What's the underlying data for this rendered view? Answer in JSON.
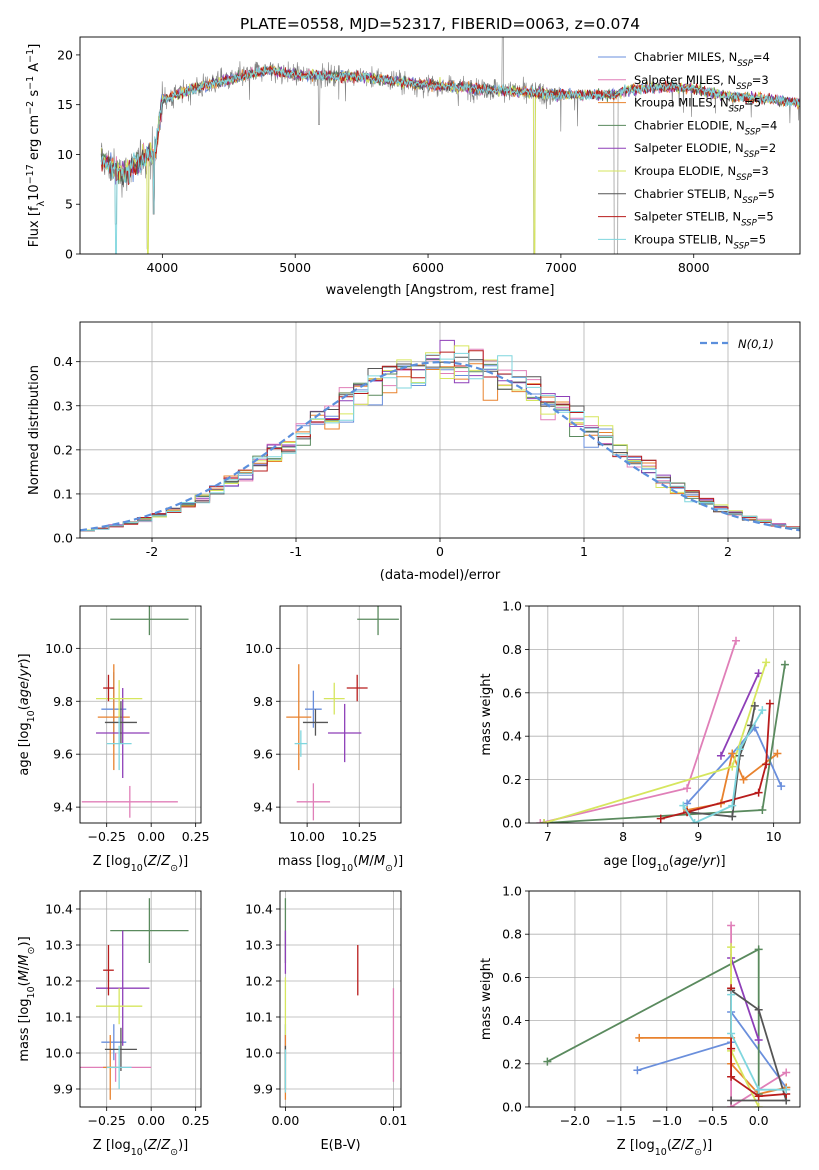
{
  "page_title": "PLATE=0558, MJD=52317, FIBERID=0063, z=0.074",
  "colors": {
    "Chabrier MILES": "#6a8fdc",
    "Salpeter MILES": "#e07fb8",
    "Kroupa MILES": "#e8822e",
    "Chabrier ELODIE": "#5a8a5e",
    "Salpeter ELODIE": "#8e3fb8",
    "Kroupa ELODIE": "#d6e65e",
    "Chabrier STELIB": "#555555",
    "Salpeter STELIB": "#b81c1c",
    "Kroupa STELIB": "#7fd6de",
    "gaussian": "#5b8fdc",
    "data": "#7f7f7f"
  },
  "chart_data": [
    {
      "id": "spectrum",
      "type": "line",
      "title": "PLATE=0558, MJD=52317, FIBERID=0063, z=0.074",
      "xlabel": "wavelength [Angstrom, rest frame]",
      "ylabel": "Flux [f_λ10^-17 erg cm^-2 s^-1 A^-1]",
      "xlim": [
        3380,
        8800
      ],
      "ylim": [
        0,
        21.8
      ],
      "xticks": [
        4000,
        5000,
        6000,
        7000,
        8000
      ],
      "yticks": [
        0,
        5,
        10,
        15,
        20
      ],
      "legend_position": "top-right",
      "legend": [
        {
          "name": "Chabrier MILES",
          "nssp": "4"
        },
        {
          "name": "Salpeter MILES",
          "nssp": "3"
        },
        {
          "name": "Kroupa MILES",
          "nssp": "5"
        },
        {
          "name": "Chabrier ELODIE",
          "nssp": "4"
        },
        {
          "name": "Salpeter ELODIE",
          "nssp": "2"
        },
        {
          "name": "Kroupa ELODIE",
          "nssp": "3"
        },
        {
          "name": "Chabrier STELIB",
          "nssp": "5"
        },
        {
          "name": "Salpeter STELIB",
          "nssp": "5"
        },
        {
          "name": "Kroupa STELIB",
          "nssp": "5"
        }
      ],
      "legend_prefix": "N",
      "legend_sub": "SSP",
      "continuum": {
        "x": [
          3540,
          3700,
          3850,
          3950,
          4000,
          4200,
          4500,
          4800,
          5000,
          5500,
          6000,
          6500,
          7000,
          7400,
          7500,
          7800,
          8000,
          8200,
          8800
        ],
        "y": [
          9.5,
          8.0,
          9.5,
          10.5,
          15.5,
          16.5,
          17.5,
          18.5,
          18.0,
          17.8,
          17.0,
          16.5,
          16.0,
          16.0,
          16.5,
          16.8,
          16.6,
          16.0,
          15.2
        ]
      },
      "features": [
        {
          "x": 3650,
          "y": 3.0
        },
        {
          "x": 3890,
          "y": 0.5
        },
        {
          "x": 3935,
          "y": 4.0
        },
        {
          "x": 5180,
          "y": 13.0
        },
        {
          "x": 6563,
          "y": 21.8
        },
        {
          "x": 6800,
          "y": 0
        },
        {
          "x": 7420,
          "y": 0
        }
      ]
    },
    {
      "id": "residuals",
      "type": "histogram",
      "xlabel": "(data-model)/error",
      "ylabel": "Normed distribution",
      "xlim": [
        -2.5,
        2.5
      ],
      "ylim": [
        0,
        0.49
      ],
      "xticks": [
        -2,
        -1,
        0,
        1,
        2
      ],
      "yticks": [
        0.0,
        0.1,
        0.2,
        0.3,
        0.4
      ],
      "grid": true,
      "legend_position": "top-right",
      "legend": [
        "N(0,1)"
      ],
      "bin_width": 0.1
    },
    {
      "id": "age-vs-Z",
      "type": "errorbar",
      "xlabel": "Z [log10(Z/Z⊙)]",
      "ylabel": "age [log10(age/yr)]",
      "xlim": [
        -0.4,
        0.28
      ],
      "ylim": [
        9.34,
        10.16
      ],
      "xticks": [
        -0.25,
        0.0,
        0.25
      ],
      "xticklabels": [
        "−0.25",
        "0.00",
        "0.25"
      ],
      "yticks": [
        9.4,
        9.6,
        9.8,
        10.0
      ],
      "grid": true,
      "points": [
        {
          "series": "Chabrier MILES",
          "x": -0.21,
          "xerr": 0.07,
          "y": 9.77,
          "yerr": 0.14
        },
        {
          "series": "Salpeter MILES",
          "x": -0.12,
          "xerr": 0.27,
          "y": 9.42,
          "yerr": 0.06
        },
        {
          "series": "Kroupa MILES",
          "x": -0.21,
          "xerr": 0.09,
          "y": 9.74,
          "yerr": 0.2
        },
        {
          "series": "Chabrier ELODIE",
          "x": -0.01,
          "xerr": 0.22,
          "y": 10.11,
          "yerr": 0.06
        },
        {
          "series": "Salpeter ELODIE",
          "x": -0.16,
          "xerr": 0.15,
          "y": 9.68,
          "yerr": 0.17
        },
        {
          "series": "Kroupa ELODIE",
          "x": -0.18,
          "xerr": 0.13,
          "y": 9.81,
          "yerr": 0.07
        },
        {
          "series": "Chabrier STELIB",
          "x": -0.17,
          "xerr": 0.09,
          "y": 9.72,
          "yerr": 0.08
        },
        {
          "series": "Salpeter STELIB",
          "x": -0.24,
          "xerr": 0.03,
          "y": 9.85,
          "yerr": 0.05
        },
        {
          "series": "Kroupa STELIB",
          "x": -0.18,
          "xerr": 0.07,
          "y": 9.64,
          "yerr": 0.1
        }
      ]
    },
    {
      "id": "age-vs-mass",
      "type": "errorbar",
      "xlabel": "mass [log10(M/M⊙)]",
      "xlim": [
        9.87,
        10.45
      ],
      "ylim": [
        9.34,
        10.16
      ],
      "xticks": [
        10.0,
        10.25
      ],
      "xticklabels": [
        "10.00",
        "10.25"
      ],
      "yticks": [
        9.4,
        9.6,
        9.8,
        10.0
      ],
      "grid": true,
      "points": [
        {
          "series": "Chabrier MILES",
          "x": 10.03,
          "xerr": 0.04,
          "y": 9.77,
          "yerr": 0.07
        },
        {
          "series": "Salpeter MILES",
          "x": 10.03,
          "xerr": 0.08,
          "y": 9.42,
          "yerr": 0.07
        },
        {
          "series": "Kroupa MILES",
          "x": 9.96,
          "xerr": 0.06,
          "y": 9.74,
          "yerr": 0.2
        },
        {
          "series": "Chabrier ELODIE",
          "x": 10.34,
          "xerr": 0.1,
          "y": 10.11,
          "yerr": 0.06
        },
        {
          "series": "Salpeter ELODIE",
          "x": 10.18,
          "xerr": 0.08,
          "y": 9.68,
          "yerr": 0.11
        },
        {
          "series": "Kroupa ELODIE",
          "x": 10.13,
          "xerr": 0.05,
          "y": 9.81,
          "yerr": 0.06
        },
        {
          "series": "Chabrier STELIB",
          "x": 10.04,
          "xerr": 0.06,
          "y": 9.72,
          "yerr": 0.05
        },
        {
          "series": "Salpeter STELIB",
          "x": 10.24,
          "xerr": 0.05,
          "y": 9.85,
          "yerr": 0.05
        },
        {
          "series": "Kroupa STELIB",
          "x": 9.97,
          "xerr": 0.03,
          "y": 9.64,
          "yerr": 0.05
        }
      ]
    },
    {
      "id": "weight-vs-age",
      "type": "line",
      "xlabel": "age [log10(age/yr)]",
      "ylabel": "mass weight",
      "xlim": [
        6.75,
        10.35
      ],
      "ylim": [
        0,
        1
      ],
      "xticks": [
        7,
        8,
        9,
        10
      ],
      "yticks": [
        0.0,
        0.2,
        0.4,
        0.6,
        0.8,
        1.0
      ],
      "grid": true,
      "series": [
        {
          "name": "Chabrier MILES",
          "x": [
            8.85,
            9.45,
            9.75,
            10.1
          ],
          "y": [
            0.09,
            0.32,
            0.44,
            0.17
          ]
        },
        {
          "name": "Salpeter MILES",
          "x": [
            6.9,
            8.85,
            9.5
          ],
          "y": [
            0.0,
            0.16,
            0.84
          ]
        },
        {
          "name": "Kroupa MILES",
          "x": [
            8.85,
            9.3,
            9.45,
            9.6,
            10.05
          ],
          "y": [
            0.06,
            0.09,
            0.32,
            0.2,
            0.32
          ]
        },
        {
          "name": "Chabrier ELODIE",
          "x": [
            6.95,
            9.85,
            10.15
          ],
          "y": [
            0.0,
            0.06,
            0.73
          ]
        },
        {
          "name": "Salpeter ELODIE",
          "x": [
            9.3,
            9.8
          ],
          "y": [
            0.31,
            0.69
          ]
        },
        {
          "name": "Kroupa ELODIE",
          "x": [
            6.95,
            9.45,
            9.9
          ],
          "y": [
            0.0,
            0.26,
            0.74
          ]
        },
        {
          "name": "Chabrier STELIB",
          "x": [
            8.85,
            9.45,
            9.55,
            9.7,
            9.75
          ],
          "y": [
            0.05,
            0.03,
            0.31,
            0.45,
            0.54
          ]
        },
        {
          "name": "Salpeter STELIB",
          "x": [
            8.5,
            8.85,
            9.8,
            9.9,
            9.95
          ],
          "y": [
            0.02,
            0.05,
            0.14,
            0.27,
            0.55
          ]
        },
        {
          "name": "Kroupa STELIB",
          "x": [
            8.8,
            8.95,
            9.45,
            9.55,
            9.85
          ],
          "y": [
            0.08,
            0.0,
            0.08,
            0.34,
            0.52
          ]
        }
      ]
    },
    {
      "id": "mass-vs-Z",
      "type": "errorbar",
      "xlabel": "Z [log10(Z/Z⊙)]",
      "ylabel": "mass [log10(M/M⊙)]",
      "xlim": [
        -0.4,
        0.28
      ],
      "ylim": [
        9.85,
        10.45
      ],
      "xticks": [
        -0.25,
        0.0,
        0.25
      ],
      "xticklabels": [
        "−0.25",
        "0.00",
        "0.25"
      ],
      "yticks": [
        9.9,
        10.0,
        10.1,
        10.2,
        10.3,
        10.4
      ],
      "grid": true,
      "points": [
        {
          "series": "Chabrier MILES",
          "x": -0.21,
          "xerr": 0.07,
          "y": 10.03,
          "yerr": 0.05
        },
        {
          "series": "Salpeter MILES",
          "x": -0.2,
          "xerr": 0.2,
          "y": 9.96,
          "yerr": 0.04
        },
        {
          "series": "Kroupa MILES",
          "x": -0.23,
          "xerr": 0.04,
          "y": 9.96,
          "yerr": 0.09
        },
        {
          "series": "Chabrier ELODIE",
          "x": -0.01,
          "xerr": 0.22,
          "y": 10.34,
          "yerr": 0.09
        },
        {
          "series": "Salpeter ELODIE",
          "x": -0.16,
          "xerr": 0.15,
          "y": 10.18,
          "yerr": 0.16
        },
        {
          "series": "Kroupa ELODIE",
          "x": -0.18,
          "xerr": 0.13,
          "y": 10.13,
          "yerr": 0.05
        },
        {
          "series": "Chabrier STELIB",
          "x": -0.17,
          "xerr": 0.09,
          "y": 10.01,
          "yerr": 0.06
        },
        {
          "series": "Salpeter STELIB",
          "x": -0.24,
          "xerr": 0.03,
          "y": 10.23,
          "yerr": 0.07
        },
        {
          "series": "Kroupa STELIB",
          "x": -0.18,
          "xerr": 0.07,
          "y": 9.96,
          "yerr": 0.06
        }
      ]
    },
    {
      "id": "mass-vs-ebv",
      "type": "errorbar",
      "xlabel": "E(B-V)",
      "xlim": [
        -0.0005,
        0.0107
      ],
      "ylim": [
        9.85,
        10.45
      ],
      "xticks": [
        0.0,
        0.01
      ],
      "xticklabels": [
        "0.00",
        "0.01"
      ],
      "yticks": [
        9.9,
        10.0,
        10.1,
        10.2,
        10.3,
        10.4
      ],
      "grid": true,
      "points": [
        {
          "series": "Chabrier MILES",
          "x": 0.0,
          "xerr": 0,
          "y": 10.03,
          "yerr": 0.05
        },
        {
          "series": "Salpeter MILES",
          "x": 0.01,
          "xerr": 0,
          "y": 10.05,
          "yerr": 0.13
        },
        {
          "series": "Kroupa MILES",
          "x": 0.0,
          "xerr": 0,
          "y": 9.96,
          "yerr": 0.09
        },
        {
          "series": "Chabrier ELODIE",
          "x": 0.0,
          "xerr": 0,
          "y": 10.34,
          "yerr": 0.09
        },
        {
          "series": "Salpeter ELODIE",
          "x": 0.0,
          "xerr": 0,
          "y": 10.28,
          "yerr": 0.06
        },
        {
          "series": "Kroupa ELODIE",
          "x": 0.0,
          "xerr": 0,
          "y": 10.13,
          "yerr": 0.08
        },
        {
          "series": "Chabrier STELIB",
          "x": 0.0,
          "xerr": 0,
          "y": 9.96,
          "yerr": 0.06
        },
        {
          "series": "Salpeter STELIB",
          "x": 0.0067,
          "xerr": 0,
          "y": 10.23,
          "yerr": 0.07
        },
        {
          "series": "Kroupa STELIB",
          "x": 0.0,
          "xerr": 0,
          "y": 9.95,
          "yerr": 0.06
        }
      ]
    },
    {
      "id": "weight-vs-Z",
      "type": "line",
      "xlabel": "Z [log10(Z/Z⊙)]",
      "ylabel": "mass weight",
      "xlim": [
        -2.5,
        0.45
      ],
      "ylim": [
        0,
        1
      ],
      "xticks": [
        -2.0,
        -1.5,
        -1.0,
        -0.5,
        0.0
      ],
      "xticklabels": [
        "−2.0",
        "−1.5",
        "−1.0",
        "−0.5",
        "0.0"
      ],
      "yticks": [
        0.0,
        0.2,
        0.4,
        0.6,
        0.8,
        1.0
      ],
      "grid": true,
      "series": [
        {
          "name": "Chabrier MILES",
          "x": [
            -1.32,
            -0.3,
            -0.3,
            0.3
          ],
          "y": [
            0.17,
            0.3,
            0.44,
            0.09
          ]
        },
        {
          "name": "Salpeter MILES",
          "x": [
            -0.3,
            -0.3,
            0.3
          ],
          "y": [
            0.84,
            0.0,
            0.16
          ]
        },
        {
          "name": "Kroupa MILES",
          "x": [
            -1.3,
            -0.3,
            -0.3,
            0.0,
            0.3
          ],
          "y": [
            0.32,
            0.32,
            0.2,
            0.06,
            0.09
          ]
        },
        {
          "name": "Chabrier ELODIE",
          "x": [
            -2.3,
            0.0,
            0.0
          ],
          "y": [
            0.21,
            0.73,
            0.06
          ]
        },
        {
          "name": "Salpeter ELODIE",
          "x": [
            -0.3,
            0.0
          ],
          "y": [
            0.69,
            0.31
          ]
        },
        {
          "name": "Kroupa ELODIE",
          "x": [
            -0.3,
            -0.3,
            0.0
          ],
          "y": [
            0.74,
            0.26,
            0.0
          ]
        },
        {
          "name": "Chabrier STELIB",
          "x": [
            -0.3,
            0.0,
            0.3,
            -0.3
          ],
          "y": [
            0.54,
            0.45,
            0.03,
            0.03
          ]
        },
        {
          "name": "Salpeter STELIB",
          "x": [
            -0.3,
            -0.3,
            -0.3,
            0.0,
            0.3
          ],
          "y": [
            0.55,
            0.27,
            0.14,
            0.05,
            0.06
          ]
        },
        {
          "name": "Kroupa STELIB",
          "x": [
            -0.3,
            -0.3,
            0.0,
            0.3
          ],
          "y": [
            0.52,
            0.34,
            0.08,
            0.08
          ]
        }
      ]
    }
  ]
}
